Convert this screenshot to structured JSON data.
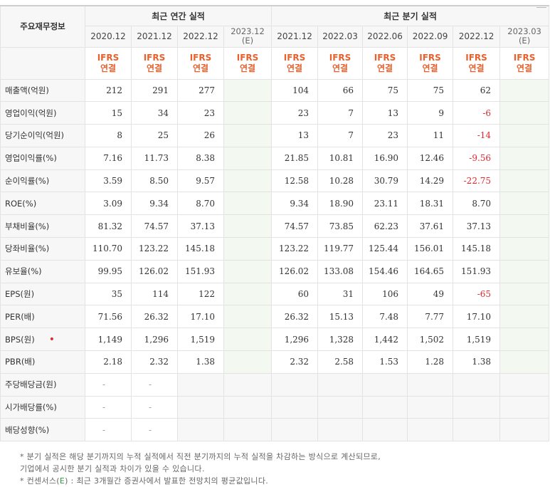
{
  "header": {
    "row_label": "주요재무정보",
    "annual_title": "최근 연간 실적",
    "quarter_title": "최근 분기 실적",
    "annual_periods": [
      "2020.12",
      "2021.12",
      "2022.12",
      "2023.12"
    ],
    "annual_est_mark": "(E)",
    "quarter_periods": [
      "2021.12",
      "2022.03",
      "2022.06",
      "2022.09",
      "2022.12",
      "2023.03"
    ],
    "quarter_est_mark": "(E)",
    "ifrs_line1": "IFRS",
    "ifrs_line2": "연결"
  },
  "rows": [
    {
      "label": "매출액(억원)",
      "annual": [
        "212",
        "291",
        "277",
        ""
      ],
      "quarter": [
        "104",
        "66",
        "75",
        "75",
        "62",
        ""
      ]
    },
    {
      "label": "영업이익(억원)",
      "annual": [
        "15",
        "34",
        "23",
        ""
      ],
      "quarter": [
        "23",
        "7",
        "13",
        "9",
        "-6",
        ""
      ]
    },
    {
      "label": "당기순이익(억원)",
      "annual": [
        "8",
        "25",
        "26",
        ""
      ],
      "quarter": [
        "13",
        "7",
        "23",
        "11",
        "-14",
        ""
      ]
    },
    {
      "label": "영업이익률(%)",
      "annual": [
        "7.16",
        "11.73",
        "8.38",
        ""
      ],
      "quarter": [
        "21.85",
        "10.81",
        "16.90",
        "12.46",
        "-9.56",
        ""
      ]
    },
    {
      "label": "순이익률(%)",
      "annual": [
        "3.59",
        "8.50",
        "9.57",
        ""
      ],
      "quarter": [
        "12.58",
        "10.28",
        "30.79",
        "14.29",
        "-22.75",
        ""
      ]
    },
    {
      "label": "ROE(%)",
      "annual": [
        "3.09",
        "9.34",
        "8.70",
        ""
      ],
      "quarter": [
        "9.34",
        "18.90",
        "23.11",
        "18.31",
        "8.70",
        ""
      ]
    },
    {
      "label": "부채비율(%)",
      "annual": [
        "81.32",
        "74.57",
        "37.13",
        ""
      ],
      "quarter": [
        "74.57",
        "73.85",
        "62.23",
        "37.61",
        "37.13",
        ""
      ]
    },
    {
      "label": "당좌비율(%)",
      "annual": [
        "110.70",
        "123.22",
        "145.18",
        ""
      ],
      "quarter": [
        "123.22",
        "119.77",
        "125.44",
        "156.01",
        "145.18",
        ""
      ]
    },
    {
      "label": "유보율(%)",
      "annual": [
        "99.95",
        "126.02",
        "151.93",
        ""
      ],
      "quarter": [
        "126.02",
        "133.08",
        "154.46",
        "164.65",
        "151.93",
        ""
      ]
    },
    {
      "label": "EPS(원)",
      "annual": [
        "35",
        "114",
        "122",
        ""
      ],
      "quarter": [
        "60",
        "31",
        "106",
        "49",
        "-65",
        ""
      ]
    },
    {
      "label": "PER(배)",
      "annual": [
        "71.56",
        "26.32",
        "17.10",
        ""
      ],
      "quarter": [
        "26.32",
        "15.13",
        "7.48",
        "7.77",
        "17.10",
        ""
      ]
    },
    {
      "label": "BPS(원)",
      "annual": [
        "1,149",
        "1,296",
        "1,519",
        ""
      ],
      "quarter": [
        "1,296",
        "1,328",
        "1,442",
        "1,502",
        "1,519",
        ""
      ],
      "marker": "•"
    },
    {
      "label": "PBR(배)",
      "annual": [
        "2.18",
        "2.32",
        "1.38",
        ""
      ],
      "quarter": [
        "2.32",
        "2.58",
        "1.53",
        "1.28",
        "1.38",
        ""
      ]
    },
    {
      "label": "주당배당금(원)",
      "annual": [
        "-",
        "-",
        "",
        ""
      ],
      "quarter": [
        "",
        "",
        "",
        "",
        "",
        ""
      ]
    },
    {
      "label": "시가배당률(%)",
      "annual": [
        "-",
        "-",
        "",
        ""
      ],
      "quarter": [
        "",
        "",
        "",
        "",
        "",
        ""
      ]
    },
    {
      "label": "배당성향(%)",
      "annual": [
        "-",
        "-",
        "",
        ""
      ],
      "quarter": [
        "",
        "",
        "",
        "",
        "",
        ""
      ]
    }
  ],
  "notes": {
    "line1": "* 분기 실적은 해당 분기까지의 누적 실적에서 직전 분기까지의 누적 실적을 차감하는 방식으로 계산되므로,",
    "line2": "  기업에서 공시한 분기 실적과 차이가 있을 수 있습니다.",
    "line3_prefix": "* 컨센서스(",
    "line3_mark": "E",
    "line3_suffix": ") : 최근 3개월간 증권사에서 발표한 전망치의 평균값입니다."
  },
  "colors": {
    "negative": "#e0282e",
    "ifrs": "#e8602c",
    "estimate_bg": "#f3f8f1",
    "label_bg": "#f7f7f7"
  }
}
